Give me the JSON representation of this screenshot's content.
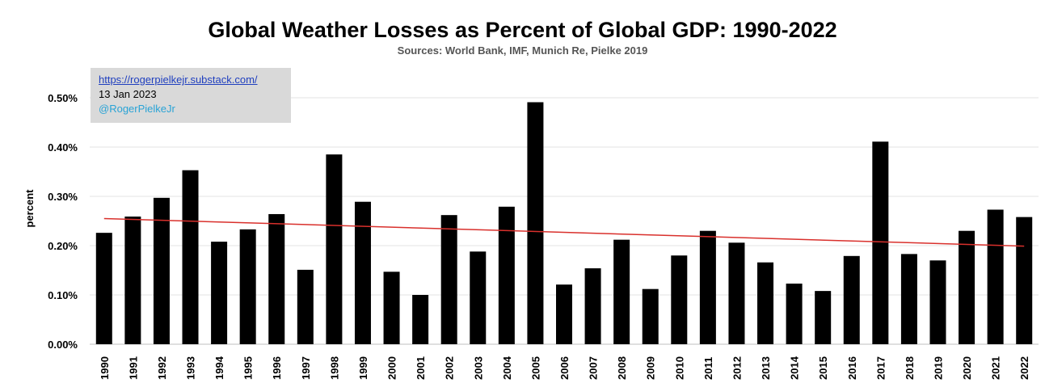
{
  "chart_data": {
    "type": "bar",
    "title": "Global Weather Losses as Percent of Global GDP: 1990-2022",
    "subtitle": "Sources: World Bank, IMF, Munich Re, Pielke 2019",
    "ylabel": "percent",
    "xlabel": "",
    "ylim": [
      0,
      0.5
    ],
    "yticks": [
      0,
      0.1,
      0.2,
      0.3,
      0.4,
      0.5
    ],
    "ytick_labels": [
      "0.00%",
      "0.10%",
      "0.20%",
      "0.30%",
      "0.40%",
      "0.50%"
    ],
    "grid": true,
    "categories": [
      "1990",
      "1991",
      "1992",
      "1993",
      "1994",
      "1995",
      "1996",
      "1997",
      "1998",
      "1999",
      "2000",
      "2001",
      "2002",
      "2003",
      "2004",
      "2005",
      "2006",
      "2007",
      "2008",
      "2009",
      "2010",
      "2011",
      "2012",
      "2013",
      "2014",
      "2015",
      "2016",
      "2017",
      "2018",
      "2019",
      "2020",
      "2021",
      "2022"
    ],
    "values": [
      0.226,
      0.259,
      0.297,
      0.353,
      0.208,
      0.233,
      0.264,
      0.151,
      0.385,
      0.289,
      0.147,
      0.1,
      0.262,
      0.188,
      0.279,
      0.491,
      0.121,
      0.154,
      0.212,
      0.112,
      0.18,
      0.23,
      0.206,
      0.166,
      0.123,
      0.108,
      0.179,
      0.411,
      0.183,
      0.17,
      0.23,
      0.273,
      0.258
    ],
    "bar_color": "#000000",
    "trend_line": {
      "color": "#d9302c",
      "start": 0.255,
      "end": 0.199
    }
  },
  "info_box": {
    "link": "https://rogerpielkejr.substack.com/",
    "date": "13 Jan 2023",
    "handle": "@RogerPielkeJr"
  }
}
